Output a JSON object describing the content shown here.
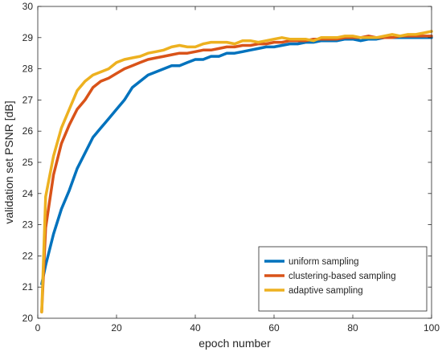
{
  "chart_data": {
    "type": "line",
    "title": "",
    "xlabel": "epoch number",
    "ylabel": "validation set PSNR [dB]",
    "xlim": [
      0,
      100
    ],
    "ylim": [
      20,
      30
    ],
    "xticks": [
      0,
      20,
      40,
      60,
      80,
      100
    ],
    "yticks": [
      20,
      21,
      22,
      23,
      24,
      25,
      26,
      27,
      28,
      29,
      30
    ],
    "grid": false,
    "legend_position": "bottom-right",
    "series": [
      {
        "name": "uniform sampling",
        "color": "#0072BD",
        "x": [
          1,
          2,
          4,
          6,
          8,
          10,
          12,
          14,
          16,
          18,
          20,
          22,
          24,
          26,
          28,
          30,
          32,
          34,
          36,
          38,
          40,
          42,
          44,
          46,
          48,
          50,
          52,
          54,
          56,
          58,
          60,
          62,
          64,
          66,
          68,
          70,
          72,
          74,
          76,
          78,
          80,
          82,
          84,
          86,
          88,
          90,
          92,
          94,
          96,
          98,
          100
        ],
        "values": [
          21.1,
          21.7,
          22.7,
          23.5,
          24.1,
          24.8,
          25.3,
          25.8,
          26.1,
          26.4,
          26.7,
          27.0,
          27.4,
          27.6,
          27.8,
          27.9,
          28.0,
          28.1,
          28.1,
          28.2,
          28.3,
          28.3,
          28.4,
          28.4,
          28.5,
          28.5,
          28.55,
          28.6,
          28.65,
          28.7,
          28.7,
          28.75,
          28.8,
          28.8,
          28.85,
          28.85,
          28.9,
          28.9,
          28.9,
          28.95,
          28.95,
          28.9,
          28.95,
          28.95,
          29.0,
          29.0,
          29.0,
          29.0,
          29.0,
          29.0,
          29.0
        ]
      },
      {
        "name": "clustering-based sampling",
        "color": "#D95319",
        "x": [
          1,
          2,
          4,
          6,
          8,
          10,
          12,
          14,
          16,
          18,
          20,
          22,
          24,
          26,
          28,
          30,
          32,
          34,
          36,
          38,
          40,
          42,
          44,
          46,
          48,
          50,
          52,
          54,
          56,
          58,
          60,
          62,
          64,
          66,
          68,
          70,
          72,
          74,
          76,
          78,
          80,
          82,
          84,
          86,
          88,
          90,
          92,
          94,
          96,
          98,
          100
        ],
        "values": [
          20.2,
          22.9,
          24.6,
          25.6,
          26.2,
          26.7,
          27.0,
          27.4,
          27.6,
          27.7,
          27.85,
          28.0,
          28.1,
          28.2,
          28.3,
          28.35,
          28.4,
          28.45,
          28.5,
          28.5,
          28.55,
          28.6,
          28.6,
          28.65,
          28.7,
          28.7,
          28.75,
          28.75,
          28.8,
          28.8,
          28.85,
          28.85,
          28.9,
          28.9,
          28.9,
          28.95,
          28.95,
          28.95,
          28.95,
          29.0,
          29.0,
          29.0,
          29.05,
          29.0,
          29.0,
          29.0,
          29.05,
          29.05,
          29.05,
          29.05,
          29.05
        ]
      },
      {
        "name": "adaptive sampling",
        "color": "#EDB120",
        "x": [
          1,
          2,
          4,
          6,
          8,
          10,
          12,
          14,
          16,
          18,
          20,
          22,
          24,
          26,
          28,
          30,
          32,
          34,
          36,
          38,
          40,
          42,
          44,
          46,
          48,
          50,
          52,
          54,
          56,
          58,
          60,
          62,
          64,
          66,
          68,
          70,
          72,
          74,
          76,
          78,
          80,
          82,
          84,
          86,
          88,
          90,
          92,
          94,
          96,
          98,
          100
        ],
        "values": [
          20.2,
          23.9,
          25.2,
          26.1,
          26.7,
          27.3,
          27.6,
          27.8,
          27.9,
          28.0,
          28.2,
          28.3,
          28.35,
          28.4,
          28.5,
          28.55,
          28.6,
          28.7,
          28.75,
          28.7,
          28.7,
          28.8,
          28.85,
          28.85,
          28.85,
          28.8,
          28.9,
          28.9,
          28.85,
          28.9,
          28.95,
          29.0,
          28.95,
          28.95,
          28.95,
          28.9,
          29.0,
          29.0,
          29.0,
          29.05,
          29.05,
          29.0,
          29.0,
          29.0,
          29.05,
          29.1,
          29.05,
          29.1,
          29.1,
          29.15,
          29.2
        ]
      }
    ]
  }
}
